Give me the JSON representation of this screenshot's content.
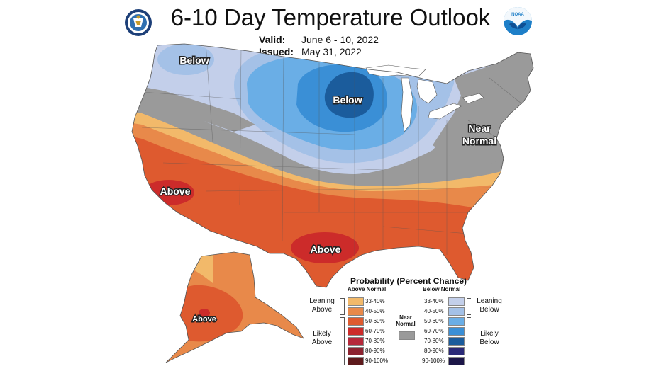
{
  "header": {
    "title": "6-10 Day Temperature Outlook",
    "valid_label": "Valid:",
    "valid_value": "June 6 - 10, 2022",
    "issued_label": "Issued:",
    "issued_value": "May 31, 2022"
  },
  "logos": {
    "left": "commerce-seal-icon",
    "right": "noaa-logo-icon"
  },
  "map_labels": {
    "below_nw": "Below",
    "below_mw": "Below",
    "near_normal_1": "Near",
    "near_normal_2": "Normal",
    "above_ca": "Above",
    "above_tx": "Above",
    "above_ak": "Above"
  },
  "colors": {
    "near_normal": "#9a9a9a",
    "above_33_40": "#f2b96a",
    "above_40_50": "#e8894a",
    "above_50_60": "#de5a2f",
    "above_60_70": "#cc2b2a",
    "above_70_80": "#b5283a",
    "above_80_90": "#8c2330",
    "above_90_100": "#5e1a1c",
    "below_33_40": "#c3cfea",
    "below_40_50": "#a4c1e7",
    "below_50_60": "#6aaee6",
    "below_60_70": "#3a8fd6",
    "below_70_80": "#1b5c9c",
    "below_80_90": "#2b2a78",
    "below_90_100": "#1c1648",
    "lakes": "#ffffff"
  },
  "legend": {
    "title": "Probability (Percent Chance)",
    "above_header": "Above Normal",
    "below_header": "Below Normal",
    "near_normal_1": "Near",
    "near_normal_2": "Normal",
    "leaning_above_1": "Leaning",
    "leaning_above_2": "Above",
    "likely_above_1": "Likely",
    "likely_above_2": "Above",
    "leaning_below_1": "Leaning",
    "leaning_below_2": "Below",
    "likely_below_1": "Likely",
    "likely_below_2": "Below",
    "ranges": [
      "33-40%",
      "40-50%",
      "50-60%",
      "60-70%",
      "70-80%",
      "80-90%",
      "90-100%"
    ]
  }
}
